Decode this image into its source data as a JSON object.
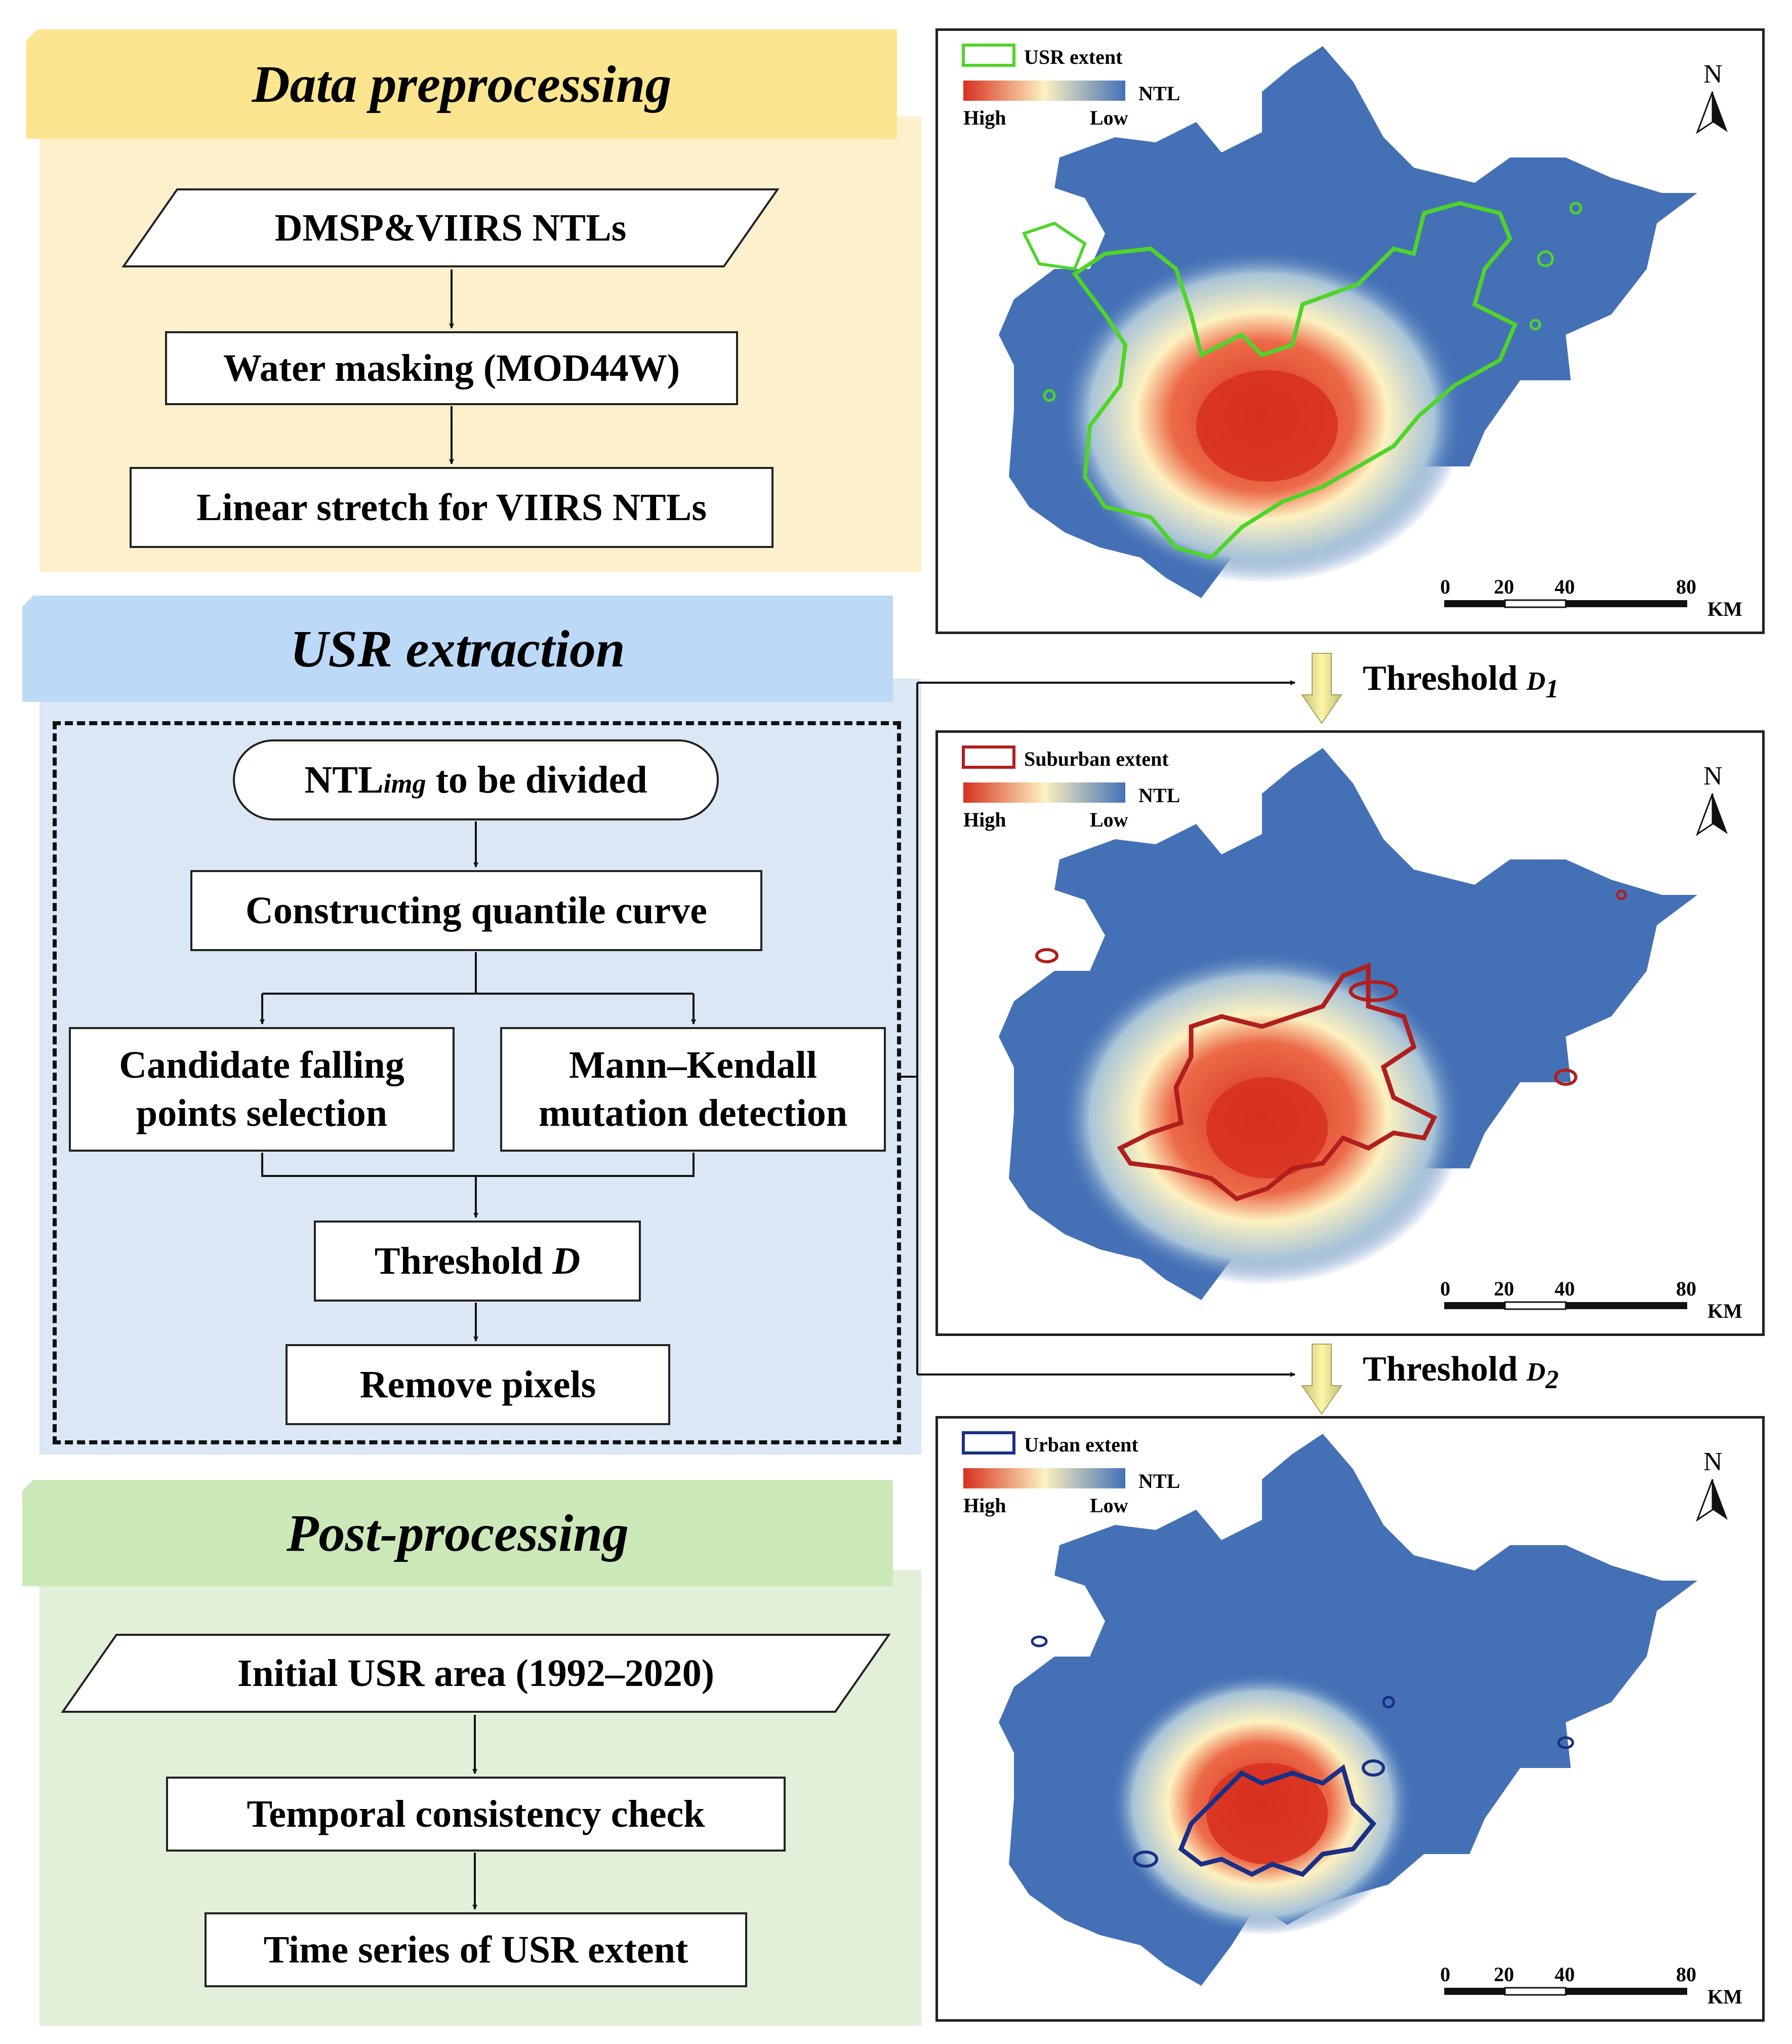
{
  "sections": {
    "preprocessing": {
      "title": "Data preprocessing",
      "steps": [
        "DMSP&VIIRS NTLs",
        "Water masking (MOD44W)",
        "Linear stretch for VIIRS NTLs"
      ]
    },
    "extraction": {
      "title": "USR extraction",
      "input_prefix": "NTL",
      "input_subscript": "img",
      "input_suffix": " to be divided",
      "steps": [
        "Constructing quantile curve",
        "Candidate falling\npoints selection",
        "Mann–Kendall\nmutation detection",
        "Remove pixels"
      ],
      "threshold_prefix": "Threshold ",
      "threshold_var": "D"
    },
    "postprocessing": {
      "title": "Post-processing",
      "steps": [
        "Initial USR area (1992–2020)",
        "Temporal consistency check",
        "Time series of USR extent"
      ]
    }
  },
  "thresholds": [
    {
      "prefix": "Threshold ",
      "var": "D",
      "sub": "1"
    },
    {
      "prefix": "Threshold ",
      "var": "D",
      "sub": "2"
    }
  ],
  "maps": [
    {
      "extent_label": "USR extent",
      "extent_color": "#4fd42a"
    },
    {
      "extent_label": "Suburban extent",
      "extent_color": "#b01e1e"
    },
    {
      "extent_label": "Urban extent",
      "extent_color": "#1a2f86"
    }
  ],
  "legend": {
    "ntl": "NTL",
    "high": "High",
    "low": "Low"
  },
  "north": "N",
  "scale": {
    "ticks": [
      "0",
      "20",
      "40",
      "80"
    ],
    "unit": "KM"
  },
  "colors": {
    "preprocessing_bg": "#fdf0cc",
    "preprocessing_banner": "#fbe58f",
    "extraction_bg": "#dbe7f4",
    "extraction_banner": "#bcdaf7",
    "post_bg": "#e2efd9",
    "post_banner": "#cce8b8",
    "map_base": "#4471b6",
    "ntl_high": "#d7301f",
    "ntl_mid": "#fdf1c0",
    "ntl_low": "#4471b6"
  }
}
